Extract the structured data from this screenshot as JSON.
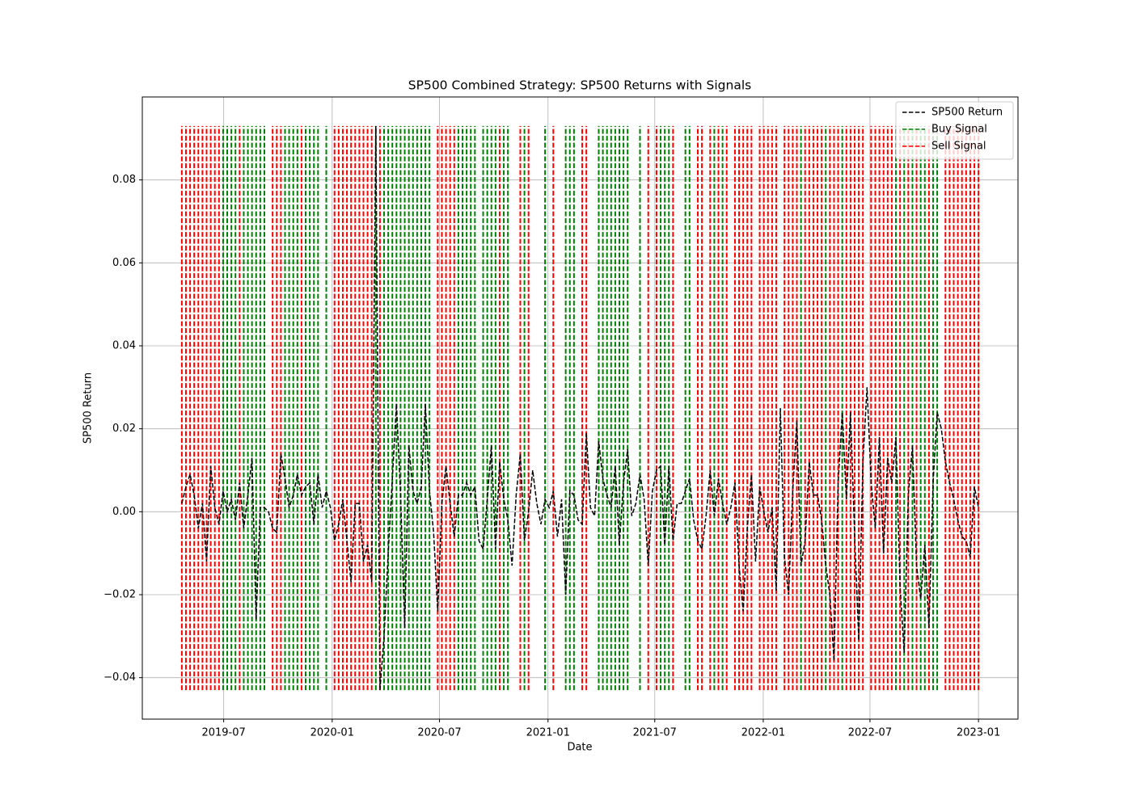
{
  "chart_data": {
    "type": "line",
    "title": "SP500 Combined Strategy: SP500 Returns with Signals",
    "x_label": "Date",
    "y_label": "SP500 Return",
    "xlim": [
      "2019-02-13",
      "2023-03-09"
    ],
    "xticks": [
      {
        "value": "2019-07-01",
        "label": "2019-07"
      },
      {
        "value": "2020-01-01",
        "label": "2020-01"
      },
      {
        "value": "2020-07-01",
        "label": "2020-07"
      },
      {
        "value": "2021-01-01",
        "label": "2021-01"
      },
      {
        "value": "2021-07-01",
        "label": "2021-07"
      },
      {
        "value": "2022-01-01",
        "label": "2022-01"
      },
      {
        "value": "2022-07-01",
        "label": "2022-07"
      },
      {
        "value": "2023-01-01",
        "label": "2023-01"
      }
    ],
    "ylim": [
      -0.05,
      0.1
    ],
    "yticks": [
      {
        "value": -0.04,
        "label": "−0.04"
      },
      {
        "value": -0.02,
        "label": "−0.02"
      },
      {
        "value": 0,
        "label": "0.00"
      },
      0.02,
      0.04,
      0.06,
      0.08
    ],
    "grid": true,
    "legend": "upper right",
    "signal_range": [
      -0.043,
      0.093
    ],
    "x": [
      "2019-04-21",
      "2019-04-28",
      "2019-05-05",
      "2019-05-12",
      "2019-05-19",
      "2019-05-26",
      "2019-06-02",
      "2019-06-09",
      "2019-06-16",
      "2019-06-23",
      "2019-06-30",
      "2019-07-07",
      "2019-07-14",
      "2019-07-21",
      "2019-07-28",
      "2019-08-04",
      "2019-08-11",
      "2019-08-18",
      "2019-08-25",
      "2019-09-01",
      "2019-09-08",
      "2019-09-15",
      "2019-09-22",
      "2019-09-29",
      "2019-10-06",
      "2019-10-13",
      "2019-10-20",
      "2019-10-27",
      "2019-11-03",
      "2019-11-10",
      "2019-11-17",
      "2019-11-24",
      "2019-12-01",
      "2019-12-08",
      "2019-12-15",
      "2019-12-22",
      "2019-12-29",
      "2020-01-05",
      "2020-01-12",
      "2020-01-19",
      "2020-01-26",
      "2020-02-02",
      "2020-02-09",
      "2020-02-16",
      "2020-02-23",
      "2020-03-01",
      "2020-03-08",
      "2020-03-15",
      "2020-03-22",
      "2020-03-29",
      "2020-04-05",
      "2020-04-12",
      "2020-04-19",
      "2020-04-26",
      "2020-05-03",
      "2020-05-10",
      "2020-05-17",
      "2020-05-24",
      "2020-05-31",
      "2020-06-07",
      "2020-06-14",
      "2020-06-21",
      "2020-06-28",
      "2020-07-05",
      "2020-07-12",
      "2020-07-19",
      "2020-07-26",
      "2020-08-02",
      "2020-08-09",
      "2020-08-16",
      "2020-08-23",
      "2020-08-30",
      "2020-09-06",
      "2020-09-13",
      "2020-09-20",
      "2020-09-27",
      "2020-10-04",
      "2020-10-11",
      "2020-10-18",
      "2020-10-25",
      "2020-11-01",
      "2020-11-08",
      "2020-11-15",
      "2020-11-22",
      "2020-11-29",
      "2020-12-06",
      "2020-12-13",
      "2020-12-20",
      "2020-12-27",
      "2021-01-03",
      "2021-01-10",
      "2021-01-17",
      "2021-01-24",
      "2021-01-31",
      "2021-02-07",
      "2021-02-14",
      "2021-02-21",
      "2021-02-28",
      "2021-03-07",
      "2021-03-14",
      "2021-03-21",
      "2021-03-28",
      "2021-04-04",
      "2021-04-11",
      "2021-04-18",
      "2021-04-25",
      "2021-05-02",
      "2021-05-09",
      "2021-05-16",
      "2021-05-23",
      "2021-05-30",
      "2021-06-06",
      "2021-06-13",
      "2021-06-20",
      "2021-06-27",
      "2021-07-04",
      "2021-07-11",
      "2021-07-18",
      "2021-07-25",
      "2021-08-01",
      "2021-08-08",
      "2021-08-15",
      "2021-08-22",
      "2021-08-29",
      "2021-09-05",
      "2021-09-12",
      "2021-09-19",
      "2021-09-26",
      "2021-10-03",
      "2021-10-10",
      "2021-10-17",
      "2021-10-24",
      "2021-10-31",
      "2021-11-07",
      "2021-11-14",
      "2021-11-21",
      "2021-11-28",
      "2021-12-05",
      "2021-12-12",
      "2021-12-19",
      "2021-12-26",
      "2022-01-02",
      "2022-01-09",
      "2022-01-16",
      "2022-01-23",
      "2022-01-30",
      "2022-02-06",
      "2022-02-13",
      "2022-02-20",
      "2022-02-27",
      "2022-03-06",
      "2022-03-13",
      "2022-03-20",
      "2022-03-27",
      "2022-04-03",
      "2022-04-10",
      "2022-04-17",
      "2022-04-24",
      "2022-05-01",
      "2022-05-08",
      "2022-05-15",
      "2022-05-22",
      "2022-05-29",
      "2022-06-05",
      "2022-06-12",
      "2022-06-19",
      "2022-06-26",
      "2022-07-03",
      "2022-07-10",
      "2022-07-17",
      "2022-07-24",
      "2022-07-31",
      "2022-08-07",
      "2022-08-14",
      "2022-08-21",
      "2022-08-28",
      "2022-09-04",
      "2022-09-11",
      "2022-09-18",
      "2022-09-25",
      "2022-10-02",
      "2022-10-09",
      "2022-10-16",
      "2022-10-23",
      "2022-10-30",
      "2022-11-06",
      "2022-11-13",
      "2022-11-20",
      "2022-11-27",
      "2022-12-04",
      "2022-12-11",
      "2022-12-18",
      "2022-12-25",
      "2023-01-01"
    ],
    "series": [
      {
        "name": "SP500 Return",
        "color": "#000000",
        "kind": "line",
        "values": [
          0.002,
          0.006,
          0.009,
          0.004,
          -0.004,
          0.002,
          -0.012,
          0.011,
          0.001,
          -0.003,
          0.005,
          0.0,
          0.003,
          -0.002,
          0.007,
          -0.004,
          0.004,
          0.013,
          -0.026,
          0.001,
          0.001,
          0.0,
          -0.004,
          -0.005,
          0.014,
          0.008,
          0.001,
          0.004,
          0.009,
          0.004,
          0.006,
          0.007,
          -0.003,
          0.009,
          0.001,
          0.005,
          0.001,
          -0.007,
          -0.003,
          0.003,
          -0.007,
          -0.017,
          0.002,
          0.002,
          -0.012,
          -0.008,
          -0.017,
          0.093,
          -0.043,
          -0.03,
          -0.01,
          0.008,
          0.026,
          0.004,
          -0.028,
          0.016,
          0.005,
          0.002,
          0.006,
          0.026,
          0.005,
          -0.005,
          -0.024,
          0.002,
          0.011,
          0.002,
          -0.006,
          0.004,
          0.004,
          0.007,
          0.004,
          0.006,
          -0.007,
          -0.009,
          0.003,
          0.016,
          -0.009,
          0.012,
          0.003,
          -0.002,
          -0.013,
          0.004,
          0.014,
          -0.007,
          0.0,
          0.01,
          0.002,
          -0.003,
          0.003,
          0.001,
          0.005,
          -0.006,
          0.003,
          -0.02,
          0.005,
          0.004,
          -0.002,
          -0.003,
          0.019,
          0.001,
          -0.001,
          0.017,
          0.008,
          0.004,
          0.001,
          0.011,
          -0.008,
          0.007,
          0.015,
          -0.001,
          0.002,
          0.009,
          0.003,
          -0.013,
          0.005,
          0.01,
          0.011,
          -0.008,
          0.011,
          -0.007,
          0.002,
          0.002,
          0.005,
          0.008,
          -0.002,
          -0.007,
          -0.009,
          -0.001,
          0.01,
          -0.001,
          0.008,
          0.002,
          -0.003,
          0.001,
          0.007,
          -0.013,
          -0.024,
          -0.004,
          0.009,
          -0.012,
          0.006,
          0.0,
          -0.005,
          0.001,
          -0.019,
          0.025,
          -0.011,
          -0.02,
          0.005,
          0.022,
          -0.013,
          -0.007,
          0.012,
          0.004,
          0.004,
          -0.002,
          -0.013,
          -0.02,
          -0.036,
          0.007,
          0.024,
          0.003,
          0.024,
          -0.006,
          -0.031,
          0.012,
          0.03,
          0.007,
          -0.004,
          0.018,
          -0.01,
          0.013,
          0.007,
          0.018,
          -0.018,
          -0.034,
          0.004,
          0.016,
          -0.013,
          -0.021,
          -0.008,
          -0.028,
          0.007,
          0.024,
          0.02,
          0.012,
          0.007,
          0.003,
          -0.002,
          -0.006,
          -0.007,
          -0.011,
          0.006,
          0.001
        ]
      },
      {
        "name": "Buy Signal",
        "color": "#008000",
        "kind": "vline",
        "x": [
          "2019-06-30",
          "2019-07-07",
          "2019-07-14",
          "2019-07-21",
          "2019-08-04",
          "2019-08-11",
          "2019-08-18",
          "2019-08-25",
          "2019-09-01",
          "2019-09-08",
          "2019-10-13",
          "2019-10-20",
          "2019-10-27",
          "2019-11-03",
          "2019-11-17",
          "2019-11-24",
          "2019-12-01",
          "2019-12-08",
          "2019-12-22",
          "2020-03-15",
          "2020-03-29",
          "2020-04-05",
          "2020-04-12",
          "2020-04-19",
          "2020-04-26",
          "2020-05-03",
          "2020-05-10",
          "2020-05-17",
          "2020-05-24",
          "2020-05-31",
          "2020-06-07",
          "2020-06-14",
          "2020-08-02",
          "2020-08-09",
          "2020-08-16",
          "2020-08-23",
          "2020-08-30",
          "2020-09-13",
          "2020-09-20",
          "2020-09-27",
          "2020-10-04",
          "2020-10-18",
          "2020-10-25",
          "2020-11-22",
          "2020-12-27",
          "2021-01-31",
          "2021-02-07",
          "2021-02-14",
          "2021-03-28",
          "2021-04-04",
          "2021-04-11",
          "2021-04-18",
          "2021-04-25",
          "2021-05-02",
          "2021-05-09",
          "2021-05-16",
          "2021-06-06",
          "2021-07-11",
          "2021-07-18",
          "2021-07-25",
          "2021-08-22",
          "2021-08-29",
          "2021-10-10",
          "2021-10-24",
          "2022-03-06",
          "2022-04-17",
          "2022-05-15",
          "2022-08-14",
          "2022-08-28",
          "2022-09-11",
          "2022-09-25",
          "2022-10-02",
          "2022-10-16",
          "2022-10-23"
        ]
      },
      {
        "name": "Sell Signal",
        "color": "#ff0000",
        "kind": "vline",
        "x": [
          "2019-04-21",
          "2019-04-28",
          "2019-05-05",
          "2019-05-12",
          "2019-05-19",
          "2019-05-26",
          "2019-06-02",
          "2019-06-09",
          "2019-06-16",
          "2019-06-23",
          "2019-07-28",
          "2019-09-22",
          "2019-09-29",
          "2019-10-06",
          "2019-11-10",
          "2020-01-05",
          "2020-01-12",
          "2020-01-19",
          "2020-01-26",
          "2020-02-02",
          "2020-02-09",
          "2020-02-16",
          "2020-02-23",
          "2020-03-01",
          "2020-03-08",
          "2020-03-22",
          "2020-06-28",
          "2020-07-05",
          "2020-07-12",
          "2020-07-19",
          "2020-07-26",
          "2020-10-11",
          "2020-11-15",
          "2020-11-29",
          "2021-01-10",
          "2021-02-28",
          "2021-03-07",
          "2021-06-20",
          "2021-07-04",
          "2021-08-01",
          "2021-09-12",
          "2021-09-19",
          "2021-10-03",
          "2021-10-17",
          "2021-10-31",
          "2021-11-14",
          "2021-11-21",
          "2021-11-28",
          "2021-12-05",
          "2021-12-12",
          "2021-12-26",
          "2022-01-02",
          "2022-01-09",
          "2022-01-16",
          "2022-01-23",
          "2022-02-06",
          "2022-02-13",
          "2022-02-20",
          "2022-02-27",
          "2022-03-13",
          "2022-03-20",
          "2022-03-27",
          "2022-04-03",
          "2022-04-10",
          "2022-04-24",
          "2022-05-01",
          "2022-05-08",
          "2022-05-22",
          "2022-05-29",
          "2022-06-05",
          "2022-06-12",
          "2022-06-19",
          "2022-07-03",
          "2022-07-10",
          "2022-07-17",
          "2022-07-24",
          "2022-07-31",
          "2022-08-07",
          "2022-08-21",
          "2022-09-04",
          "2022-09-18",
          "2022-10-09",
          "2022-11-06",
          "2022-11-13",
          "2022-11-20",
          "2022-11-27",
          "2022-12-04",
          "2022-12-11",
          "2022-12-18",
          "2022-12-25",
          "2023-01-01"
        ]
      }
    ]
  }
}
